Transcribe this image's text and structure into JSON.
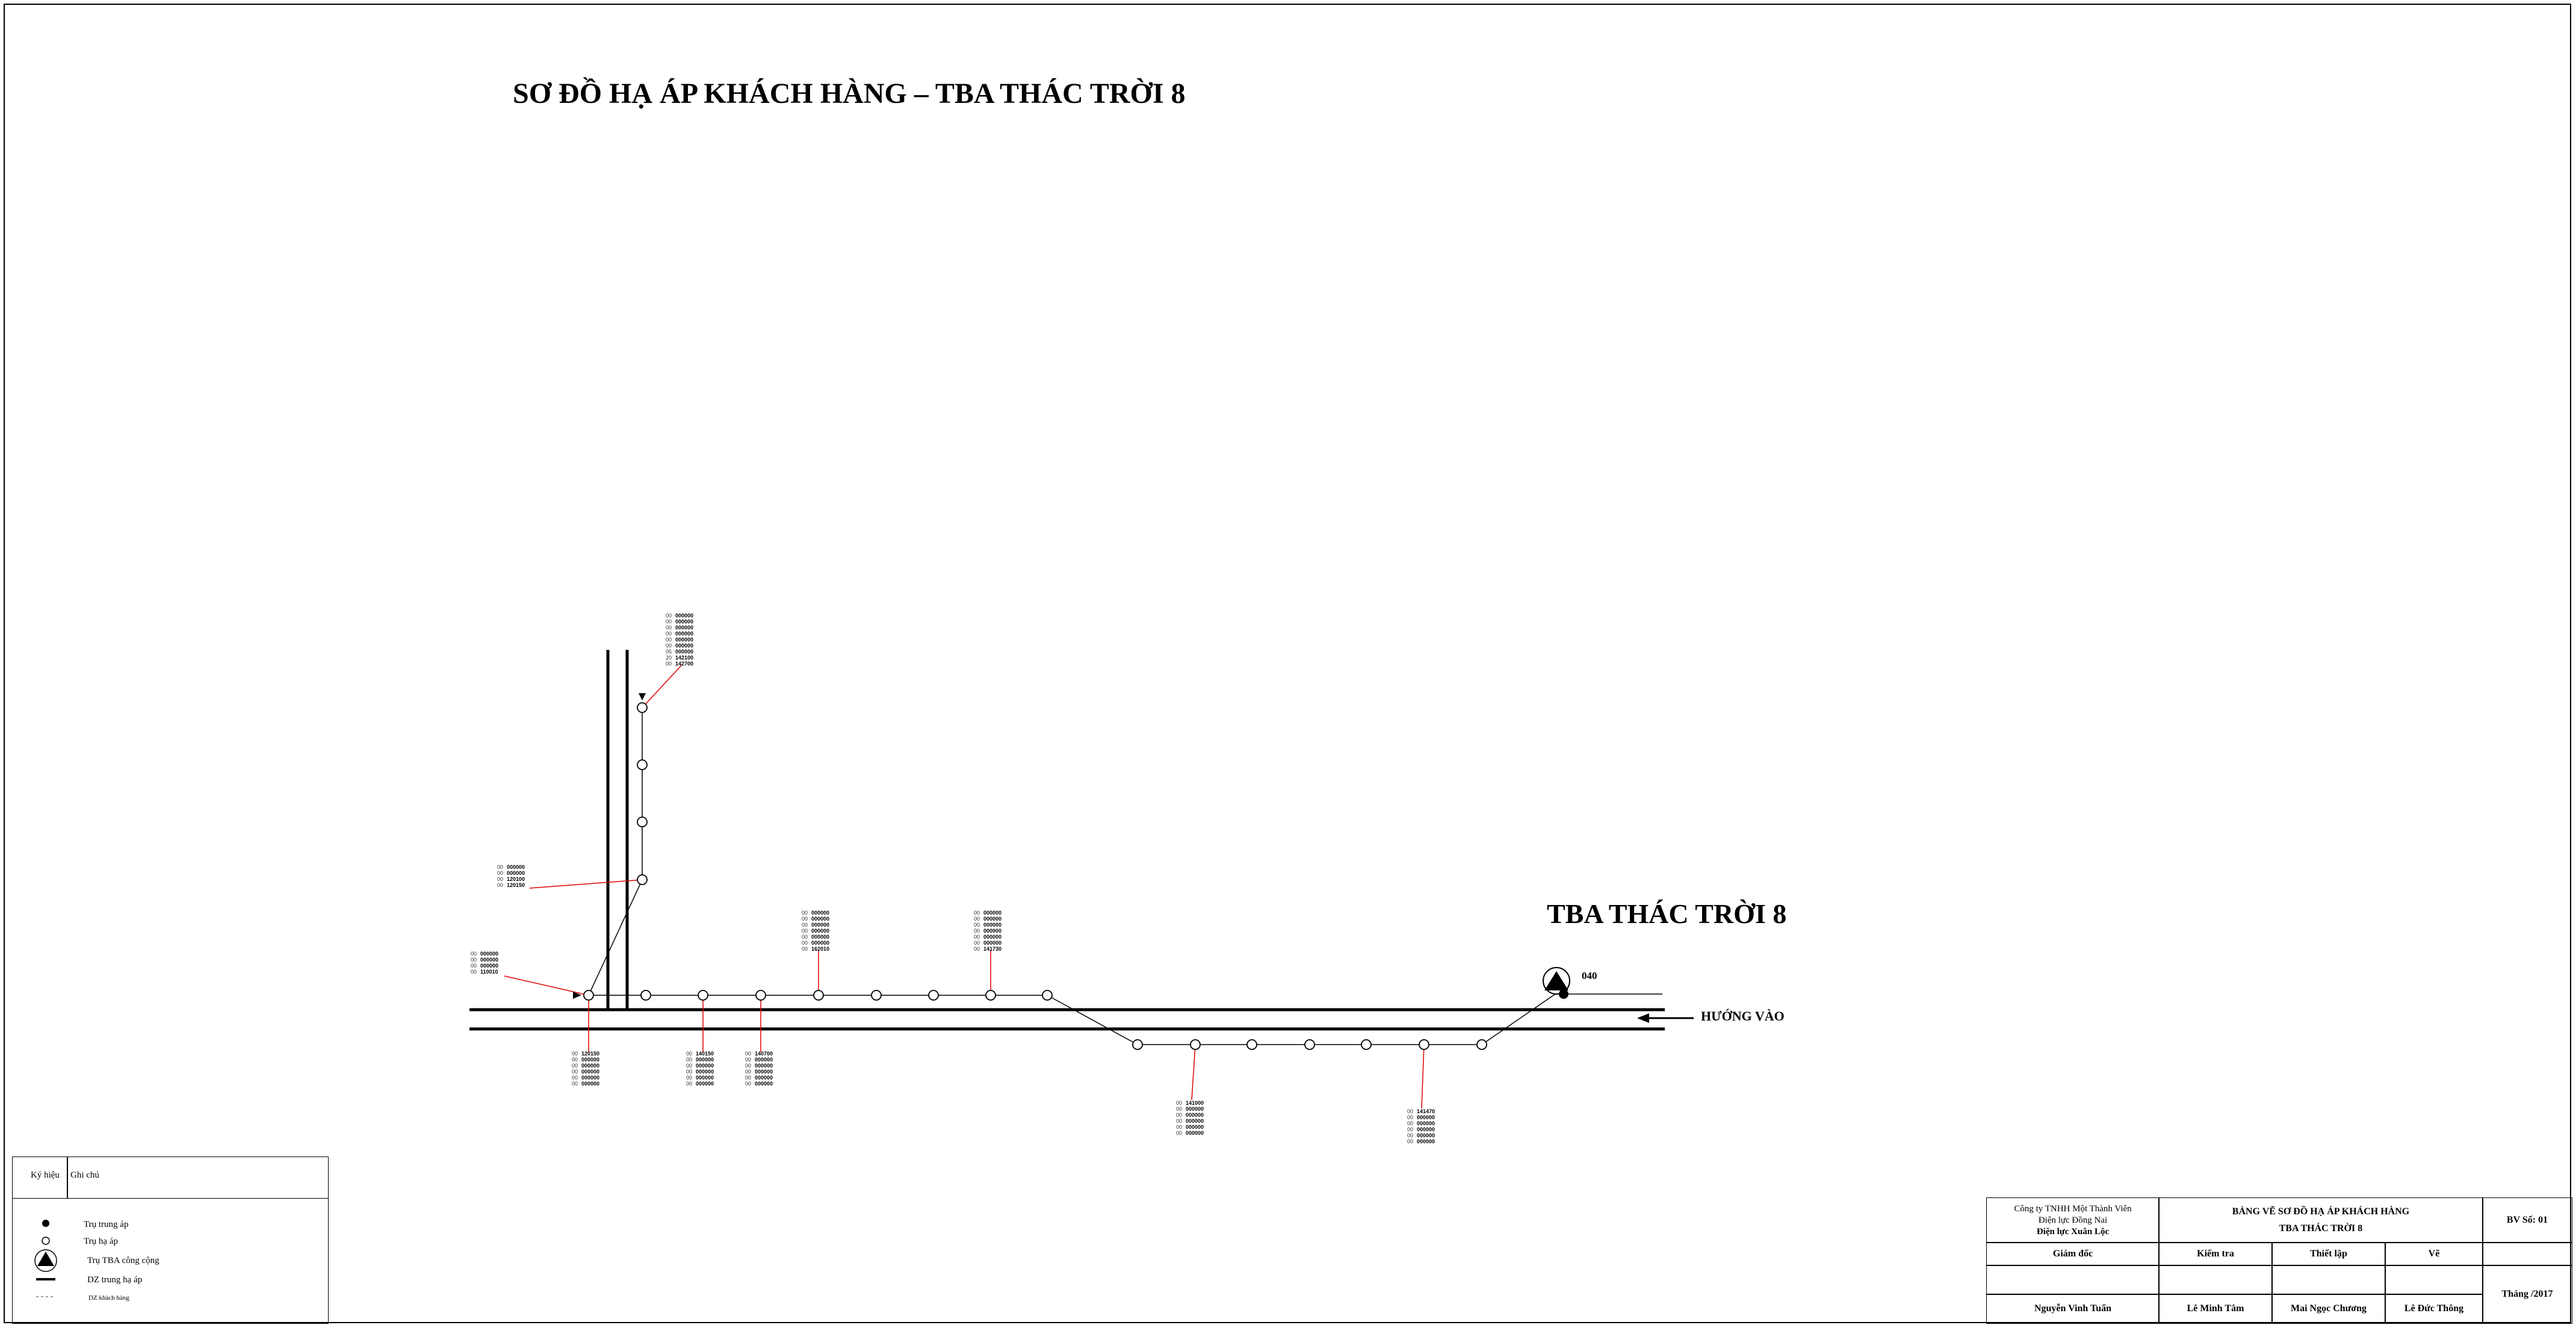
{
  "title": "SƠ ĐỒ HẠ ÁP KHÁCH HÀNG – TBA THÁC TRỜI 8",
  "station": {
    "name": "TBA THÁC TRỜI 8",
    "code": "040"
  },
  "direction_label": "HƯỚNG VÀO",
  "meter_groups": [
    {
      "id": "g1",
      "lines": [
        [
          "00",
          "000000"
        ],
        [
          "00",
          "000000"
        ],
        [
          "00",
          "000000"
        ],
        [
          "00",
          "000000"
        ],
        [
          "00",
          "000000"
        ],
        [
          "00",
          "000000"
        ],
        [
          "05",
          "000000"
        ],
        [
          "20",
          "142100"
        ],
        [
          "00",
          "142700"
        ]
      ]
    },
    {
      "id": "g2",
      "lines": [
        [
          "00",
          "000000"
        ],
        [
          "00",
          "000000"
        ],
        [
          "00",
          "120100"
        ],
        [
          "00",
          "120150"
        ]
      ]
    },
    {
      "id": "g3",
      "lines": [
        [
          "00",
          "000000"
        ],
        [
          "00",
          "000000"
        ],
        [
          "00",
          "000000"
        ],
        [
          "00",
          "110010"
        ]
      ]
    },
    {
      "id": "g4",
      "lines": [
        [
          "00",
          "000000"
        ],
        [
          "00",
          "000000"
        ],
        [
          "00",
          "000000"
        ],
        [
          "00",
          "000000"
        ],
        [
          "00",
          "000000"
        ],
        [
          "00",
          "000000"
        ],
        [
          "00",
          "162010"
        ]
      ]
    },
    {
      "id": "g5",
      "lines": [
        [
          "00",
          "000000"
        ],
        [
          "00",
          "000000"
        ],
        [
          "00",
          "000000"
        ],
        [
          "00",
          "000000"
        ],
        [
          "00",
          "000000"
        ],
        [
          "00",
          "000000"
        ],
        [
          "00",
          "141730"
        ]
      ]
    },
    {
      "id": "g6",
      "lines": [
        [
          "00",
          "120150"
        ],
        [
          "00",
          "000000"
        ],
        [
          "00",
          "000000"
        ],
        [
          "00",
          "000000"
        ],
        [
          "00",
          "000000"
        ],
        [
          "00",
          "000000"
        ]
      ]
    },
    {
      "id": "g7",
      "lines": [
        [
          "00",
          "140150"
        ],
        [
          "00",
          "000000"
        ],
        [
          "00",
          "000000"
        ],
        [
          "00",
          "000000"
        ],
        [
          "00",
          "000000"
        ],
        [
          "00",
          "000000"
        ]
      ]
    },
    {
      "id": "g8",
      "lines": [
        [
          "00",
          "140700"
        ],
        [
          "00",
          "000000"
        ],
        [
          "00",
          "000000"
        ],
        [
          "00",
          "000000"
        ],
        [
          "00",
          "000000"
        ],
        [
          "00",
          "000000"
        ]
      ]
    },
    {
      "id": "g9",
      "lines": [
        [
          "00",
          "141000"
        ],
        [
          "00",
          "000000"
        ],
        [
          "00",
          "000000"
        ],
        [
          "00",
          "000000"
        ],
        [
          "00",
          "000000"
        ],
        [
          "00",
          "000000"
        ]
      ]
    },
    {
      "id": "g10",
      "lines": [
        [
          "00",
          "141470"
        ],
        [
          "00",
          "000000"
        ],
        [
          "00",
          "000000"
        ],
        [
          "00",
          "000000"
        ],
        [
          "00",
          "000000"
        ],
        [
          "00",
          "000000"
        ]
      ]
    }
  ],
  "legend": {
    "header_symbol": "Ký hiệu",
    "header_note": "Ghi chú",
    "items": [
      {
        "icon": "filled-circle-icon",
        "label": "Trụ trung áp"
      },
      {
        "icon": "open-circle-icon",
        "label": "Trụ hạ áp"
      },
      {
        "icon": "triangle-station-icon",
        "label": "Trụ TBA công cộng"
      },
      {
        "icon": "thick-line-icon",
        "label": "DZ trung hạ áp"
      },
      {
        "icon": "dashed-line-icon",
        "label": "DZ khách hàng"
      }
    ]
  },
  "title_block": {
    "company_line1": "Công ty TNHH Một Thành Viên",
    "company_line2": "Điện lực Đồng Nai",
    "company_line3": "Điện lực Xuân Lộc",
    "drawing_line1": "BẢNG VẼ SƠ ĐỒ HẠ ÁP KHÁCH HÀNG",
    "drawing_line2": "TBA THÁC TRỜI 8",
    "sheet_no": "BV Số: 01",
    "director_label": "Giám đốc",
    "checker_label": "Kiểm tra",
    "designer_label": "Thiết lập",
    "drafter_label": "Vẽ",
    "date_label": "Tháng   /2017",
    "director_name": "Nguyễn Vinh Tuấn",
    "checker_name": "Lê Minh Tâm",
    "designer_name": "Mai Ngọc Chương",
    "drafter_name": "Lê Đức Thông"
  }
}
